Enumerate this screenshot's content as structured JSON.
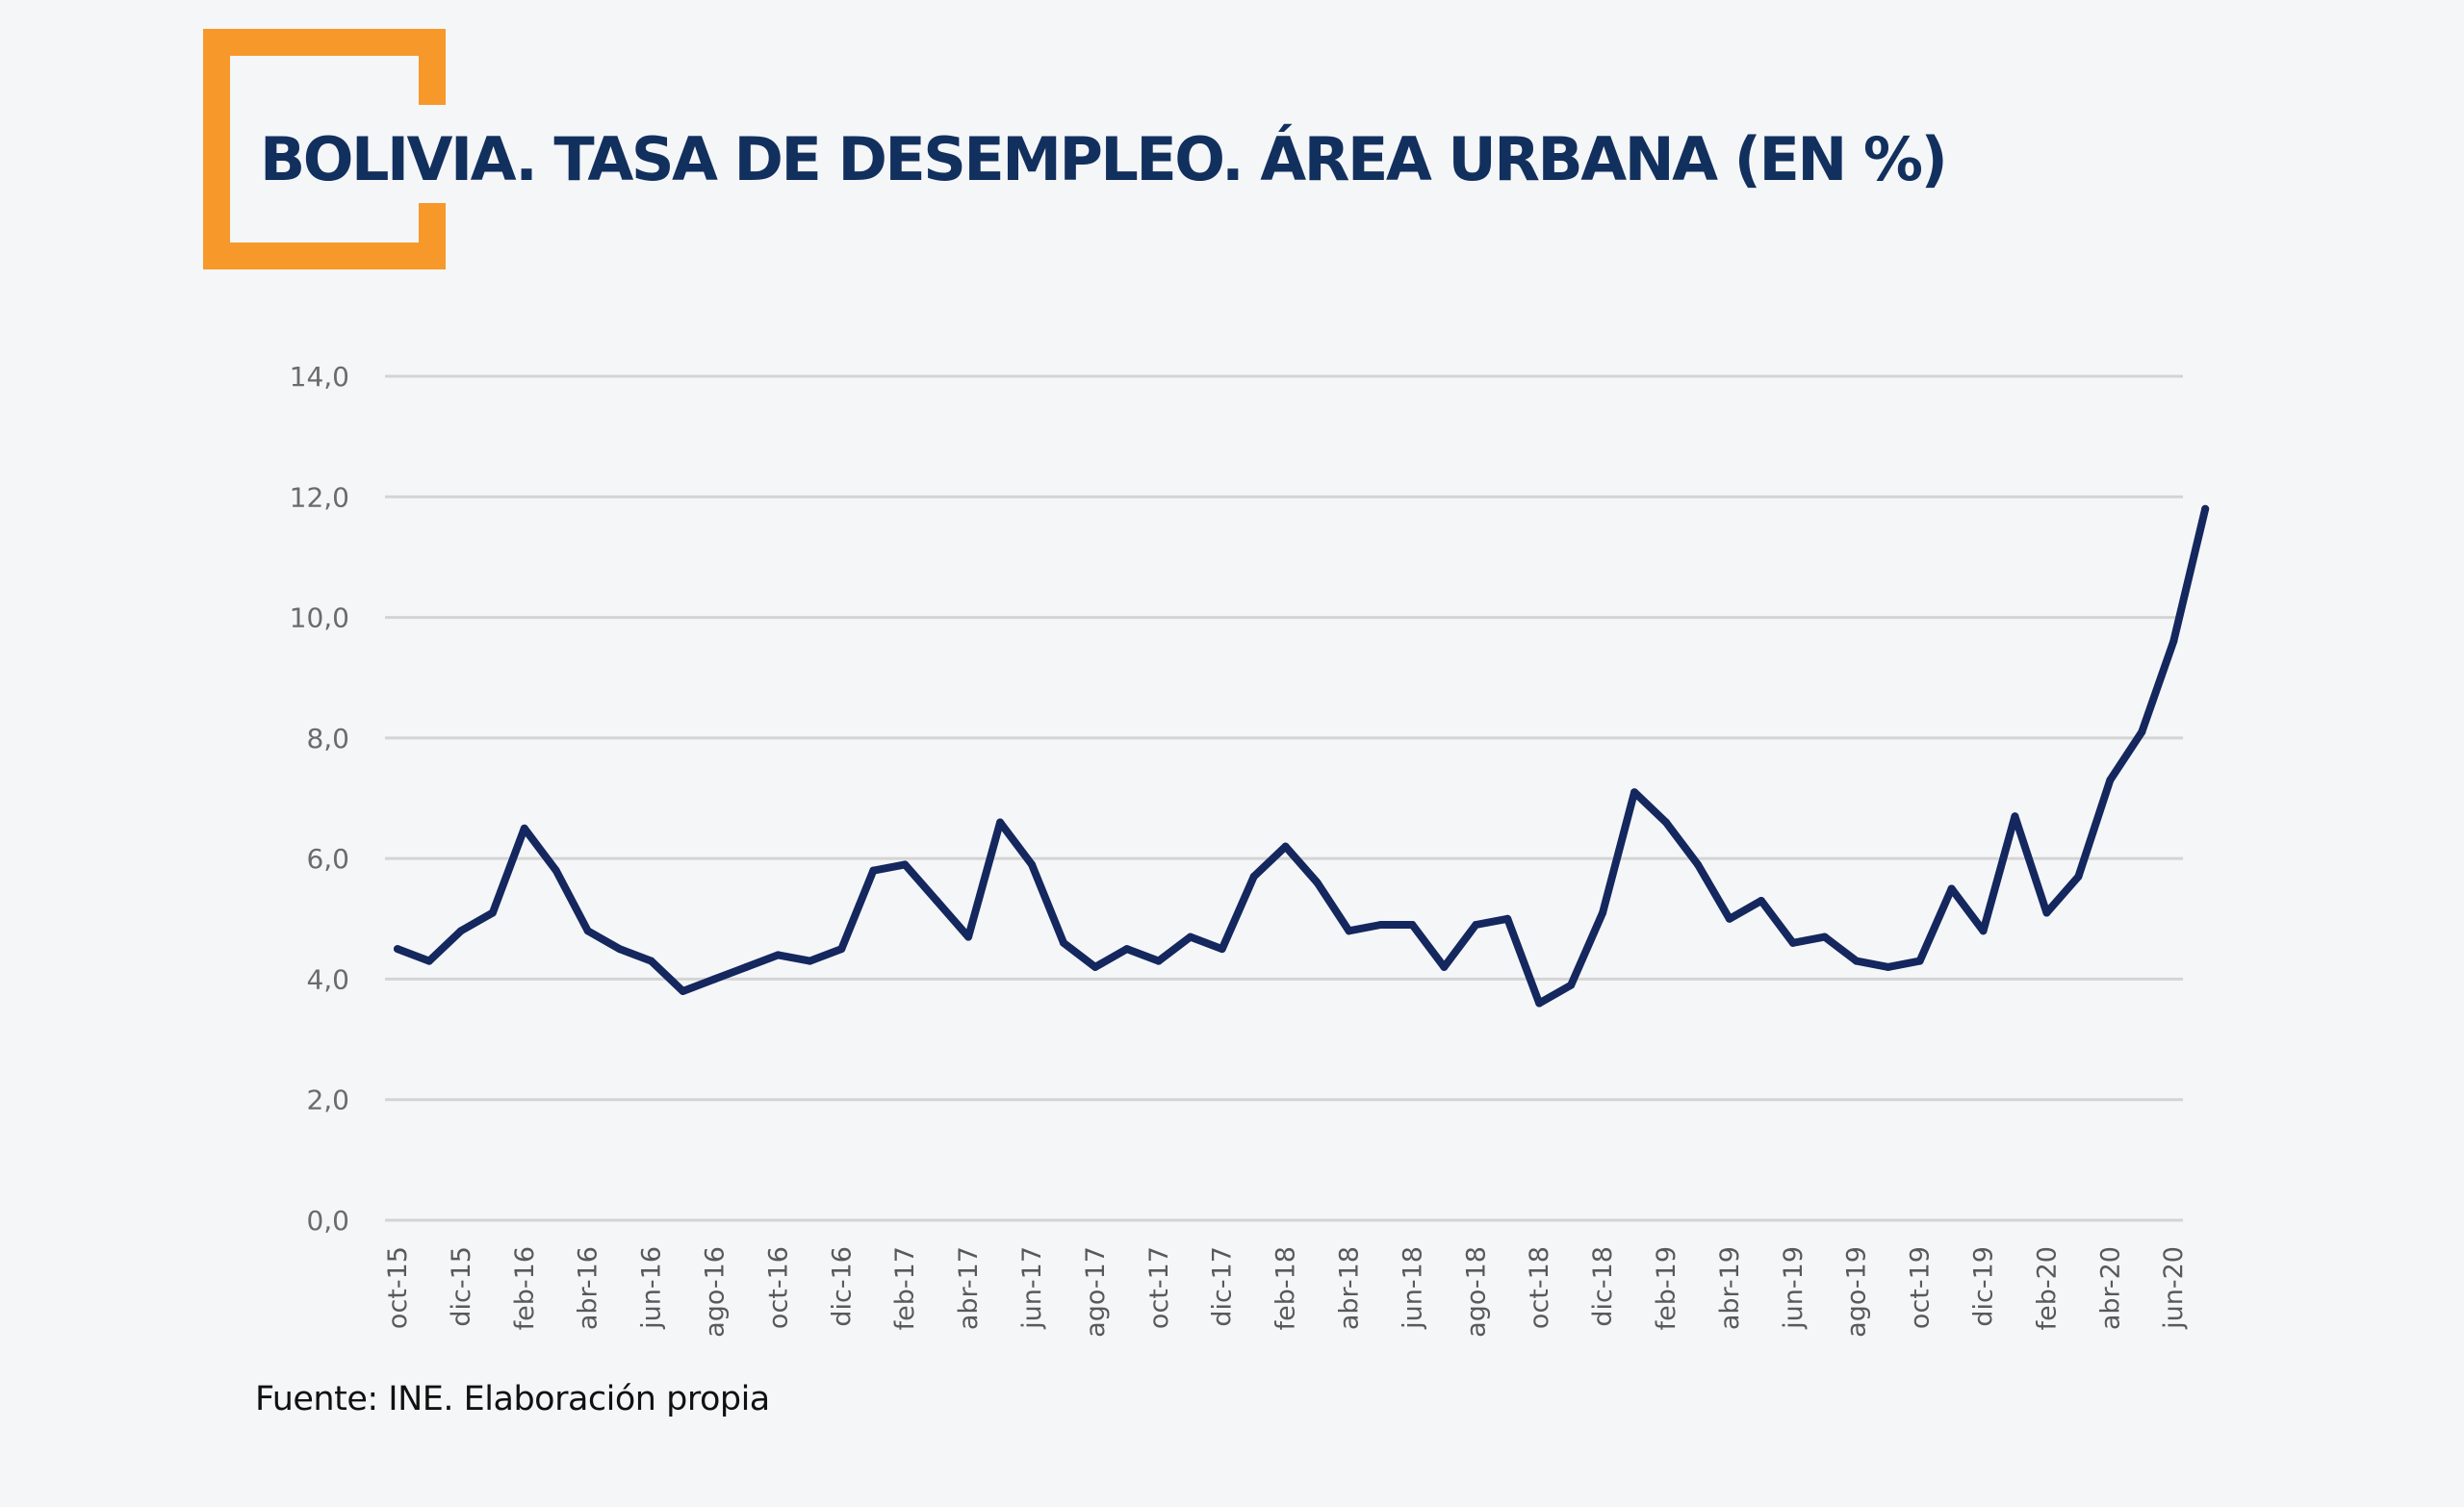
{
  "header": {
    "title": "BOLIVIA. TASA DE DESEMPLEO. ÁREA URBANA (EN %)",
    "accent_color": "#f7982b",
    "title_color": "#12305e"
  },
  "footer": {
    "source": "Fuente: INE. Elaboración propia"
  },
  "chart_data": {
    "type": "line",
    "title": "BOLIVIA. TASA DE DESEMPLEO. ÁREA URBANA (EN %)",
    "xlabel": "",
    "ylabel": "",
    "ylim": [
      0,
      14
    ],
    "yticks": [
      0,
      2,
      4,
      6,
      8,
      10,
      12,
      14
    ],
    "ytick_labels": [
      "0,0",
      "2,0",
      "4,0",
      "6,0",
      "8,0",
      "10,0",
      "12,0",
      "14,0"
    ],
    "grid": "horizontal",
    "legend": "none",
    "line_color": "#14275e",
    "x": [
      "oct-15",
      "nov-15",
      "dic-15",
      "ene-16",
      "feb-16",
      "mar-16",
      "abr-16",
      "may-16",
      "jun-16",
      "jul-16",
      "ago-16",
      "sep-16",
      "oct-16",
      "nov-16",
      "dic-16",
      "ene-17",
      "feb-17",
      "mar-17",
      "abr-17",
      "may-17",
      "jun-17",
      "jul-17",
      "ago-17",
      "sep-17",
      "oct-17",
      "nov-17",
      "dic-17",
      "ene-18",
      "feb-18",
      "mar-18",
      "abr-18",
      "may-18",
      "jun-18",
      "jul-18",
      "ago-18",
      "sep-18",
      "oct-18",
      "nov-18",
      "dic-18",
      "ene-19",
      "feb-19",
      "mar-19",
      "abr-19",
      "may-19",
      "jun-19",
      "jul-19",
      "ago-19",
      "sep-19",
      "oct-19",
      "nov-19",
      "dic-19",
      "ene-20",
      "feb-20",
      "mar-20",
      "abr-20",
      "may-20",
      "jun-20",
      "jul-20"
    ],
    "xtick_labels": [
      "oct-15",
      "dic-15",
      "feb-16",
      "abr-16",
      "jun-16",
      "ago-16",
      "oct-16",
      "dic-16",
      "feb-17",
      "abr-17",
      "jun-17",
      "ago-17",
      "oct-17",
      "dic-17",
      "feb-18",
      "abr-18",
      "jun-18",
      "ago-18",
      "oct-18",
      "dic-18",
      "feb-19",
      "abr-19",
      "jun-19",
      "ago-19",
      "oct-19",
      "dic-19",
      "feb-20",
      "abr-20",
      "jun-20"
    ],
    "series": [
      {
        "name": "Tasa de desempleo urbano (%)",
        "values": [
          4.5,
          4.3,
          4.8,
          5.1,
          6.5,
          5.8,
          4.8,
          4.5,
          4.3,
          3.8,
          4.0,
          4.2,
          4.4,
          4.3,
          4.5,
          5.8,
          5.9,
          5.3,
          4.7,
          6.6,
          5.9,
          4.6,
          4.2,
          4.5,
          4.3,
          4.7,
          4.5,
          5.7,
          6.2,
          5.6,
          4.8,
          4.9,
          4.9,
          4.2,
          4.9,
          5.0,
          3.6,
          3.9,
          5.1,
          7.1,
          6.6,
          5.9,
          5.0,
          5.3,
          4.6,
          4.7,
          4.3,
          4.2,
          4.3,
          5.5,
          4.8,
          6.7,
          5.1,
          5.7,
          7.3,
          8.1,
          9.6,
          11.8
        ]
      }
    ]
  }
}
